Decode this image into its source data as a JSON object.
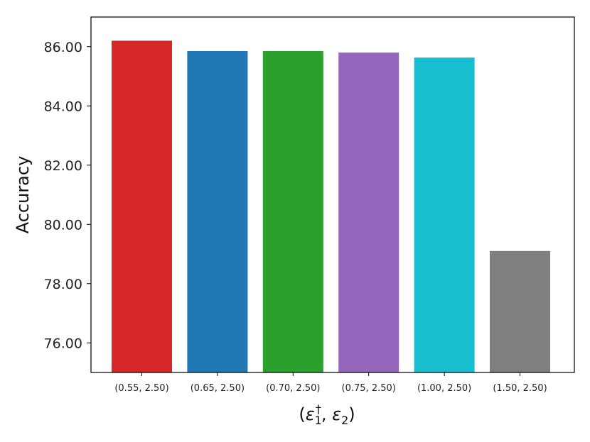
{
  "chart_data": {
    "type": "bar",
    "title": "",
    "xlabel": "(ε1†, ε2)",
    "ylabel": "Accuracy",
    "categories": [
      "(0.55, 2.50)",
      "(0.65, 2.50)",
      "(0.70, 2.50)",
      "(0.75, 2.50)",
      "(1.00, 2.50)",
      "(1.50, 2.50)"
    ],
    "values": [
      86.2,
      85.85,
      85.85,
      85.8,
      85.63,
      79.1
    ],
    "colors": [
      "#d62728",
      "#1f77b4",
      "#2ca02c",
      "#9467bd",
      "#17becf",
      "#7f7f7f"
    ],
    "ylim": [
      75.0,
      87.0
    ],
    "yticks": [
      76,
      78,
      80,
      82,
      84,
      86
    ],
    "ytick_labels": [
      "76.00",
      "78.00",
      "80.00",
      "82.00",
      "84.00",
      "86.00"
    ],
    "grid": false,
    "legend": false
  }
}
